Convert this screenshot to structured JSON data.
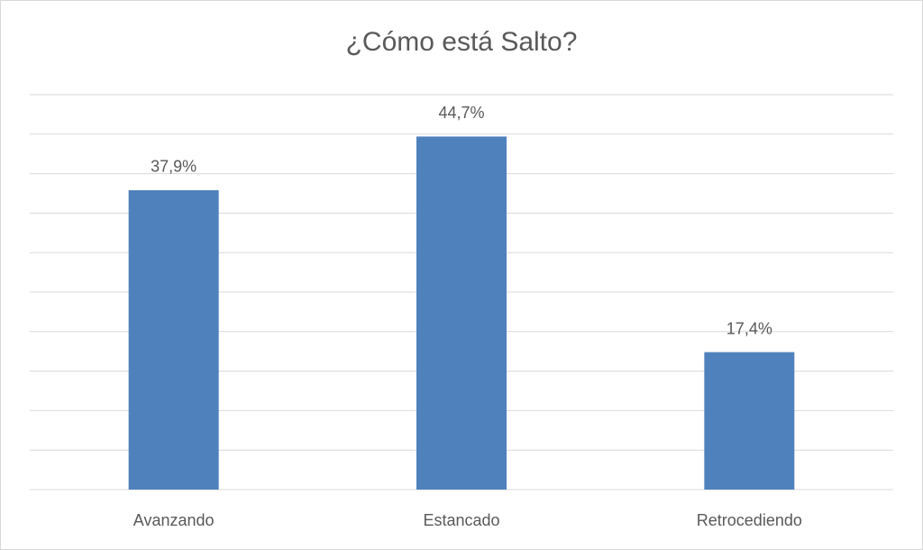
{
  "chart_data": {
    "type": "bar",
    "title": "¿Cómo está Salto?",
    "categories": [
      "Avanzando",
      "Estancado",
      "Retrocediendo"
    ],
    "values": [
      37.9,
      44.7,
      17.4
    ],
    "value_labels": [
      "37,9%",
      "44,7%",
      "17,4%"
    ],
    "color": "#4f81bd",
    "ylim": [
      0,
      50
    ],
    "yticks": [
      0,
      5,
      10,
      15,
      20,
      25,
      30,
      35,
      40,
      45,
      50
    ],
    "grid": true
  }
}
